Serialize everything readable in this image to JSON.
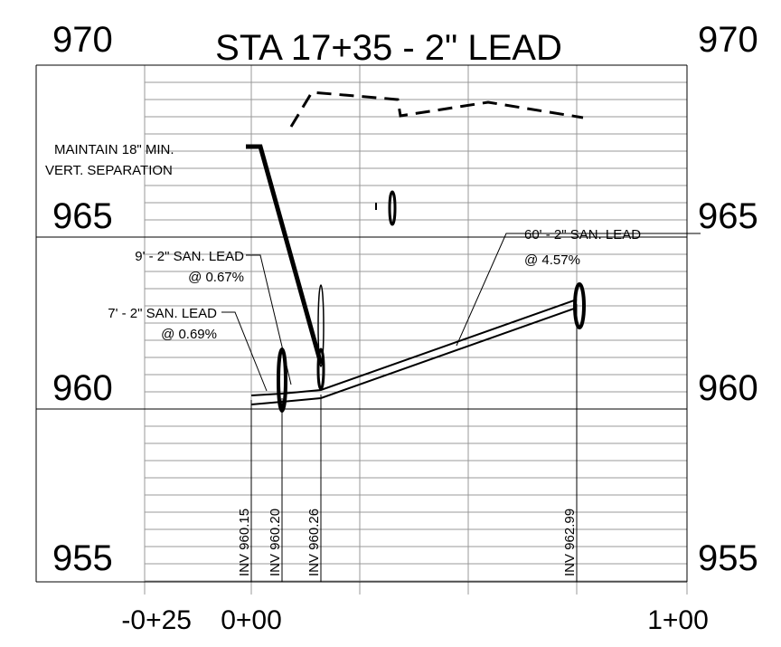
{
  "title": "STA 17+35 - 2\" LEAD",
  "elevation_labels_left": [
    "970",
    "965",
    "960",
    "955"
  ],
  "elevation_labels_right": [
    "970",
    "965",
    "960",
    "955"
  ],
  "station_labels": [
    "-0+25",
    "0+00",
    "1+00"
  ],
  "callouts": [
    {
      "lines": [
        "MAINTAIN 18\" MIN.",
        "VERT. SEPARATION"
      ]
    },
    {
      "lines": [
        "9' - 2\" SAN. LEAD",
        "@ 0.67%"
      ]
    },
    {
      "lines": [
        "7' - 2\" SAN. LEAD",
        "@ 0.69%"
      ]
    },
    {
      "lines": [
        "60' - 2\" SAN. LEAD",
        "@ 4.57%"
      ]
    }
  ],
  "inverts": [
    "INV 960.15",
    "INV 960.20",
    "INV 960.26",
    "INV 962.99"
  ]
}
